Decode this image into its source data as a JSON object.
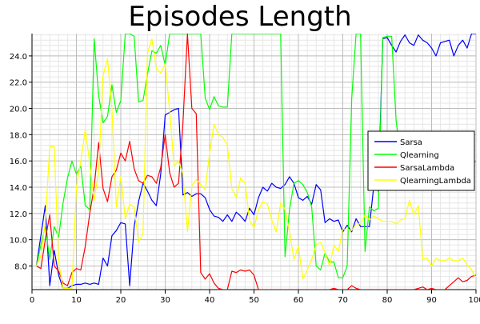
{
  "chart_data": {
    "type": "line",
    "title": "Episodes Length",
    "xlabel": "",
    "ylabel": "",
    "xlim": [
      0,
      100
    ],
    "ylim": [
      6.2,
      25.7
    ],
    "xticks": [
      "0",
      "10",
      "20",
      "30",
      "40",
      "50",
      "60",
      "70",
      "80",
      "90",
      "100"
    ],
    "yticks": [
      "8.0",
      "10.0",
      "12.0",
      "14.0",
      "16.0",
      "18.0",
      "20.0",
      "22.0",
      "24.0"
    ],
    "grid": true,
    "legend_position": "right",
    "x": [
      1,
      2,
      3,
      4,
      5,
      6,
      7,
      8,
      9,
      10,
      11,
      12,
      13,
      14,
      15,
      16,
      17,
      18,
      19,
      20,
      21,
      22,
      23,
      24,
      25,
      26,
      27,
      28,
      29,
      30,
      31,
      32,
      33,
      34,
      35,
      36,
      37,
      38,
      39,
      40,
      41,
      42,
      43,
      44,
      45,
      46,
      47,
      48,
      49,
      50,
      51,
      52,
      53,
      54,
      55,
      56,
      57,
      58,
      59,
      60,
      61,
      62,
      63,
      64,
      65,
      66,
      67,
      68,
      69,
      70,
      71,
      72,
      73,
      74,
      75,
      76,
      77,
      78,
      79,
      80,
      81,
      82,
      83,
      84,
      85,
      86,
      87,
      88,
      89,
      90,
      91,
      92,
      93,
      94,
      95,
      96,
      97,
      98,
      99,
      100
    ],
    "series": [
      {
        "name": "Sarsa",
        "color": "#0000ff",
        "values": [
          8.0,
          10.3,
          12.6,
          6.5,
          9.2,
          7.3,
          6.3,
          6.3,
          6.5,
          6.6,
          6.6,
          6.7,
          6.6,
          6.7,
          6.6,
          8.6,
          8.0,
          10.3,
          10.7,
          11.3,
          11.2,
          6.5,
          11.0,
          12.9,
          14.3,
          13.7,
          13.0,
          12.6,
          15.0,
          19.5,
          19.7,
          19.9,
          20.0,
          13.4,
          13.6,
          13.3,
          13.5,
          13.5,
          13.2,
          12.3,
          11.8,
          11.7,
          11.4,
          11.9,
          11.4,
          12.1,
          11.8,
          11.4,
          12.4,
          11.9,
          13.2,
          14.0,
          13.7,
          14.3,
          14.0,
          13.9,
          14.2,
          14.8,
          14.3,
          13.2,
          13.0,
          13.3,
          12.7,
          14.2,
          13.8,
          11.3,
          11.6,
          11.4,
          11.5,
          10.6,
          11.1,
          10.6,
          11.6,
          11.0,
          11.0,
          11.0,
          14.2,
          13.7,
          25.3,
          25.4,
          24.8,
          24.3,
          25.1,
          25.6,
          25.0,
          24.8,
          25.6,
          25.2,
          25.0,
          24.6,
          24.0,
          25.0,
          25.1,
          25.2,
          24.0,
          24.8,
          25.2,
          24.6,
          25.7,
          25.7
        ]
      },
      {
        "name": "Qlearning",
        "color": "#00ff00",
        "values": [
          8.0,
          9.6,
          11.0,
          8.5,
          11.0,
          10.2,
          12.8,
          14.7,
          16.0,
          15.0,
          15.6,
          12.6,
          12.3,
          25.3,
          21.0,
          18.9,
          19.4,
          21.8,
          19.7,
          20.6,
          25.7,
          25.7,
          25.5,
          20.5,
          20.6,
          22.6,
          24.4,
          24.2,
          24.8,
          23.3,
          25.7,
          25.7,
          25.7,
          25.7,
          25.7,
          25.7,
          25.7,
          25.7,
          20.8,
          19.9,
          20.9,
          20.2,
          20.1,
          20.1,
          25.7,
          25.7,
          25.7,
          25.7,
          25.7,
          25.7,
          25.7,
          25.7,
          25.7,
          25.7,
          25.7,
          25.7,
          8.7,
          12.3,
          14.3,
          14.5,
          14.2,
          13.6,
          12.5,
          8.0,
          7.7,
          9.0,
          8.3,
          8.3,
          7.1,
          7.1,
          8.0,
          20.7,
          25.7,
          25.7,
          9.1,
          12.5,
          12.2,
          12.4,
          25.4,
          25.5,
          25.5,
          19.1,
          16.5,
          16.0,
          15.9,
          16.0,
          16.3,
          15.9,
          16.0,
          15.8,
          16.2,
          15.8,
          16.0,
          16.2,
          16.3,
          16.3,
          16.2,
          16.0,
          16.2,
          15.9
        ]
      },
      {
        "name": "SarsaLambda",
        "color": "#ff0000",
        "values": [
          8.0,
          7.8,
          10.0,
          11.9,
          8.0,
          7.6,
          6.7,
          6.5,
          7.5,
          7.8,
          7.7,
          9.5,
          12.0,
          14.0,
          17.4,
          13.9,
          12.9,
          14.8,
          15.3,
          16.6,
          16.0,
          17.5,
          15.4,
          14.5,
          14.3,
          14.9,
          14.8,
          14.3,
          15.5,
          18.0,
          15.1,
          14.0,
          14.3,
          18.9,
          25.7,
          20.0,
          19.6,
          7.5,
          7.0,
          7.4,
          6.7,
          6.3,
          6.2,
          6.2,
          7.6,
          7.5,
          7.7,
          7.6,
          7.7,
          7.3,
          6.2,
          6.2,
          6.2,
          6.2,
          6.2,
          6.2,
          6.2,
          6.2,
          6.2,
          6.2,
          6.2,
          6.2,
          6.2,
          6.2,
          6.2,
          6.2,
          6.2,
          6.3,
          6.2,
          6.2,
          6.2,
          6.5,
          6.3,
          6.2,
          6.2,
          6.2,
          6.2,
          6.2,
          6.2,
          6.2,
          6.2,
          6.2,
          6.2,
          6.2,
          6.2,
          6.2,
          6.3,
          6.4,
          6.2,
          6.3,
          6.2,
          6.2,
          6.2,
          6.5,
          6.8,
          7.1,
          6.8,
          6.9,
          7.2,
          7.3
        ]
      },
      {
        "name": "QlearningLambda",
        "color": "#ffff00",
        "values": [
          8.0,
          8.8,
          11.3,
          17.1,
          17.1,
          8.3,
          6.3,
          6.3,
          6.3,
          14.0,
          16.0,
          18.4,
          15.8,
          13.0,
          15.2,
          22.5,
          23.8,
          20.0,
          12.5,
          14.8,
          11.6,
          12.7,
          12.5,
          9.8,
          10.5,
          24.2,
          25.3,
          23.0,
          22.7,
          23.4,
          19.8,
          15.6,
          16.0,
          15.0,
          10.6,
          14.1,
          14.6,
          14.2,
          13.8,
          16.6,
          18.8,
          18.0,
          17.8,
          17.2,
          13.9,
          13.2,
          14.7,
          14.3,
          11.5,
          10.9,
          12.3,
          12.9,
          12.7,
          11.5,
          10.6,
          12.8,
          12.3,
          10.6,
          8.5,
          9.5,
          7.0,
          7.7,
          8.5,
          9.6,
          9.8,
          9.0,
          8.0,
          9.6,
          9.1,
          10.8,
          10.8,
          10.7,
          11.2,
          11.2,
          11.9,
          11.5,
          11.8,
          11.6,
          11.4,
          11.4,
          11.4,
          11.2,
          11.5,
          11.6,
          13.0,
          11.9,
          12.6,
          8.5,
          8.6,
          8.0,
          8.6,
          8.4,
          8.4,
          8.6,
          8.4,
          8.4,
          8.6,
          8.1,
          7.7,
          7.1
        ]
      }
    ]
  }
}
